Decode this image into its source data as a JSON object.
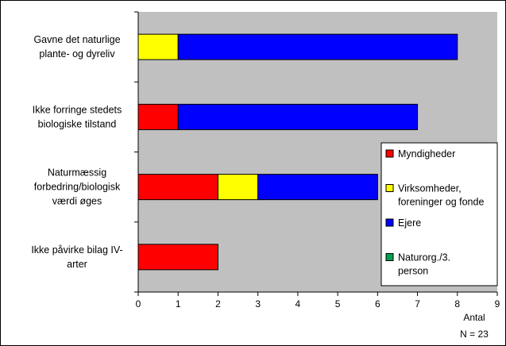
{
  "chart_data": {
    "type": "bar",
    "orientation": "horizontal",
    "stacked": true,
    "categories": [
      [
        "Gavne det naturlige",
        "plante- og dyreliv"
      ],
      [
        "Ikke forringe stedets",
        "biologiske tilstand"
      ],
      [
        "Naturmæssig",
        "forbedring/biologisk",
        "værdi øges"
      ],
      [
        "Ikke påvirke bilag IV-",
        "arter"
      ]
    ],
    "series": [
      {
        "name": [
          "Myndigheder"
        ],
        "color": "#ff0000",
        "values": [
          0,
          1,
          2,
          2
        ]
      },
      {
        "name": [
          "Virksomheder,",
          "foreninger og fonde"
        ],
        "color": "#ffff00",
        "values": [
          1,
          0,
          1,
          0
        ]
      },
      {
        "name": [
          "Ejere"
        ],
        "color": "#0000ff",
        "values": [
          7,
          6,
          3,
          0
        ]
      },
      {
        "name": [
          "Naturorg./3.",
          "person"
        ],
        "color": "#00a050",
        "values": [
          0,
          0,
          0,
          0
        ]
      }
    ],
    "xlim": [
      0,
      9
    ],
    "xticks": [
      "0",
      "1",
      "2",
      "3",
      "4",
      "5",
      "6",
      "7",
      "8",
      "9"
    ],
    "xlabel": "Antal",
    "note": "N = 23",
    "plot_background": "#c0c0c0",
    "legend_position": "right"
  }
}
